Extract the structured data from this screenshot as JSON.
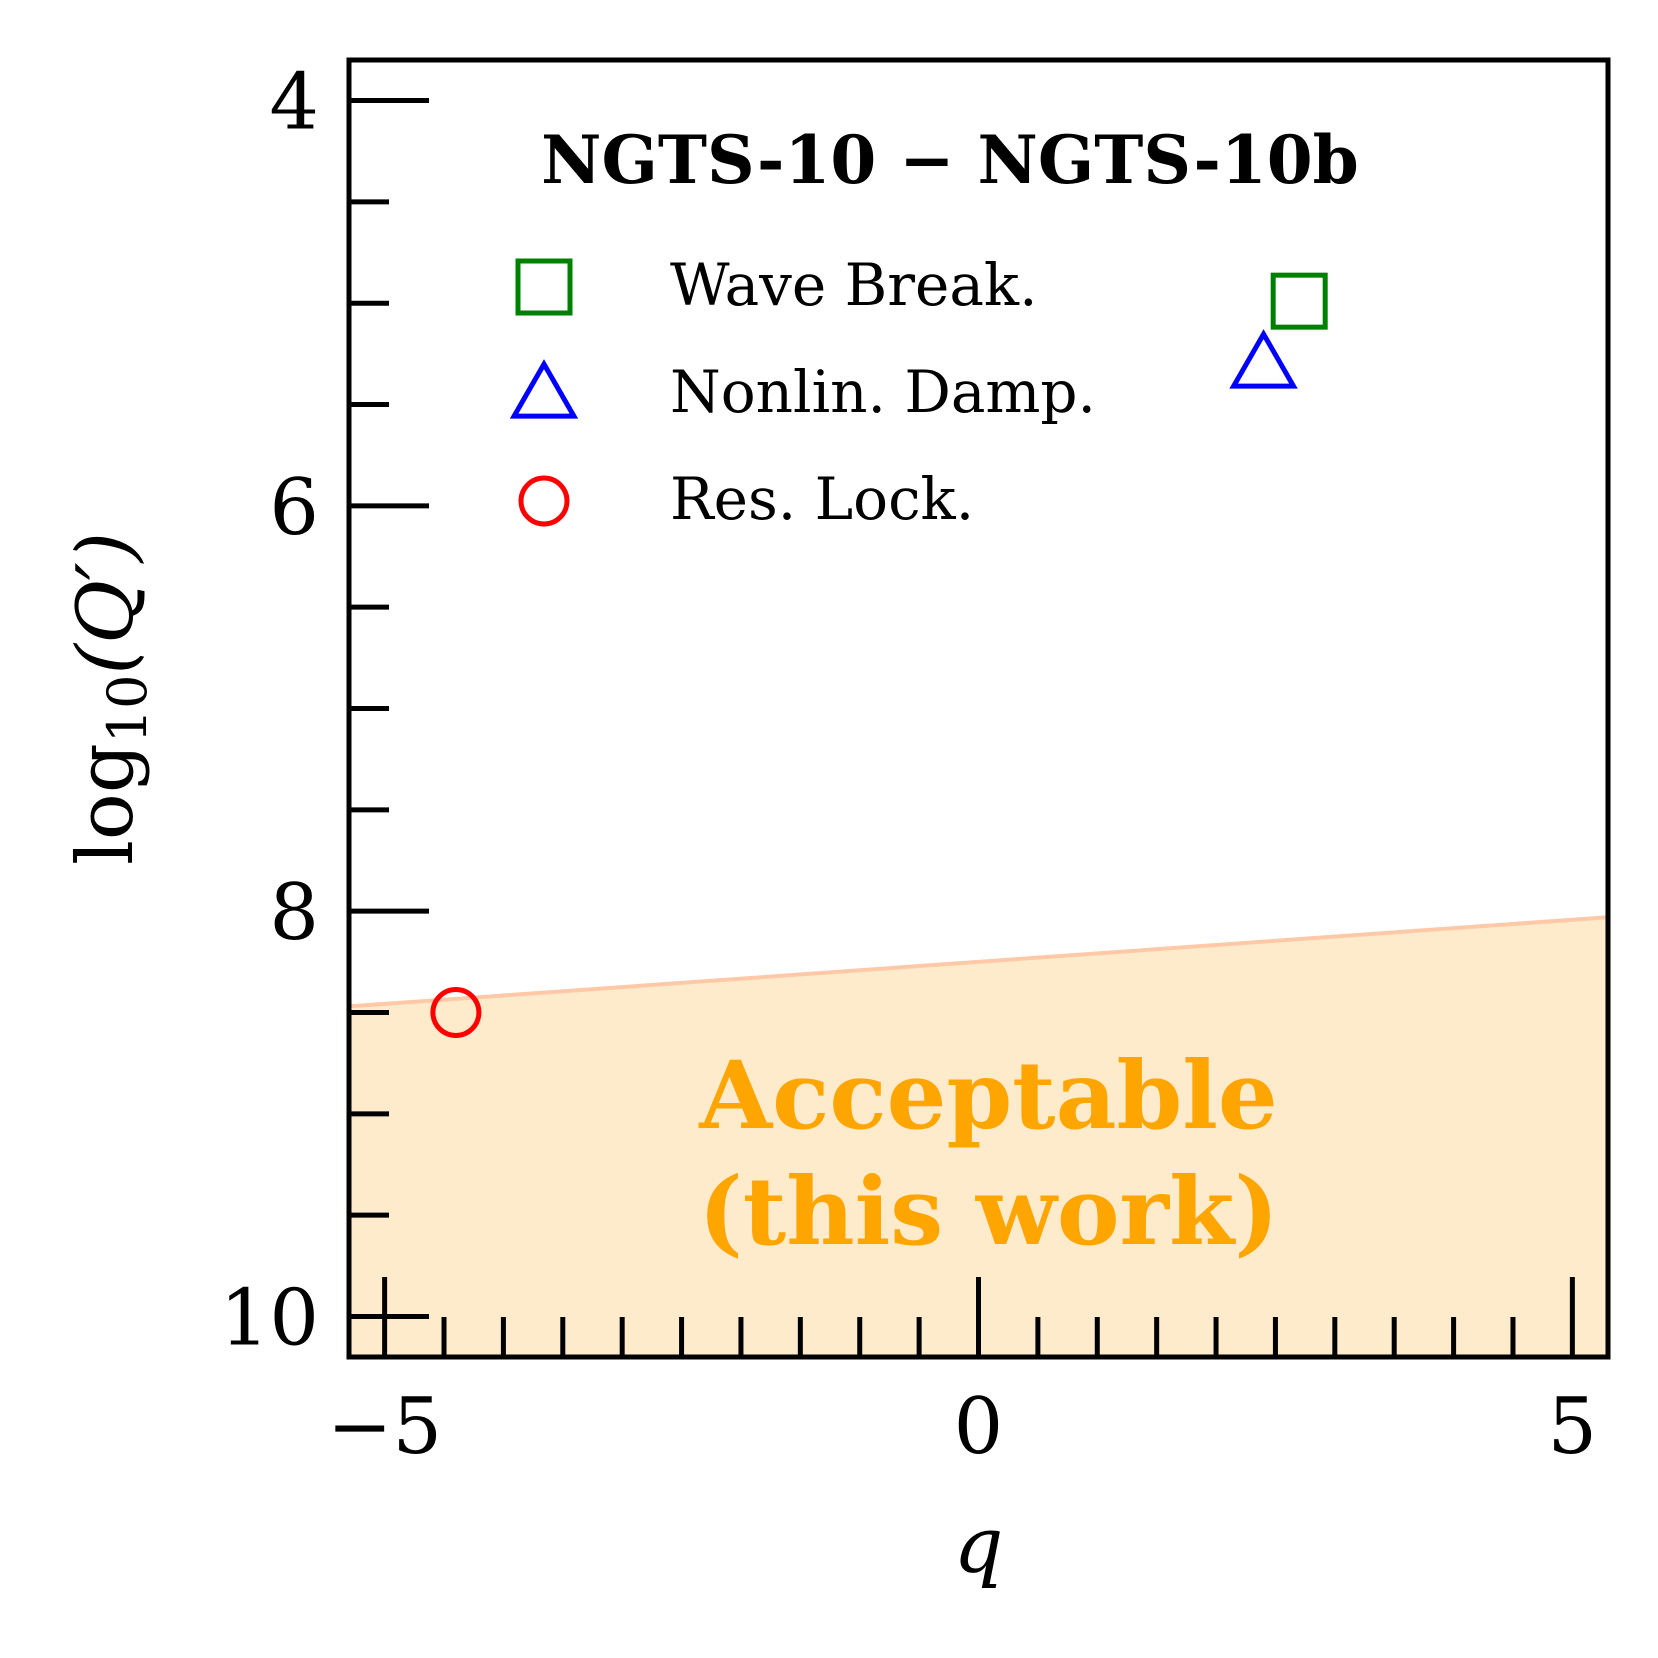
{
  "chart_data": {
    "type": "scatter",
    "title": "NGTS-10 − NGTS-10b",
    "xlabel": "q",
    "ylabel_main": "log",
    "ylabel_sub": "10",
    "ylabel_arg": "(Q′)",
    "xlim": [
      -5.3,
      5.3
    ],
    "ylim": [
      10.2,
      3.8
    ],
    "y_inverted": true,
    "x_ticks": [
      -5,
      0,
      5
    ],
    "x_tick_labels": [
      "−5",
      "0",
      "5"
    ],
    "y_ticks": [
      4,
      6,
      8,
      10
    ],
    "y_tick_labels": [
      "4",
      "6",
      "8",
      "10"
    ],
    "series": [
      {
        "name": "Wave Break.",
        "marker": "square",
        "color": "#008000",
        "x": 2.7,
        "y": 4.99
      },
      {
        "name": "Nonlin. Damp.",
        "marker": "triangle",
        "color": "#0000ff",
        "x": 2.4,
        "y": 5.3
      },
      {
        "name": "Res. Lock.",
        "marker": "circle",
        "color": "#ff0000",
        "x": -4.4,
        "y": 8.5
      }
    ],
    "region": {
      "label_line1": "Acceptable",
      "label_line2": "(this work)",
      "label_color": "#ffa500",
      "fill_color": "#fdebcc",
      "edge_color": "#ffc9a8",
      "boundary": [
        [
          -5.3,
          8.47
        ],
        [
          5.3,
          8.03
        ]
      ]
    },
    "legend_position": "upper-left",
    "grid": false
  }
}
